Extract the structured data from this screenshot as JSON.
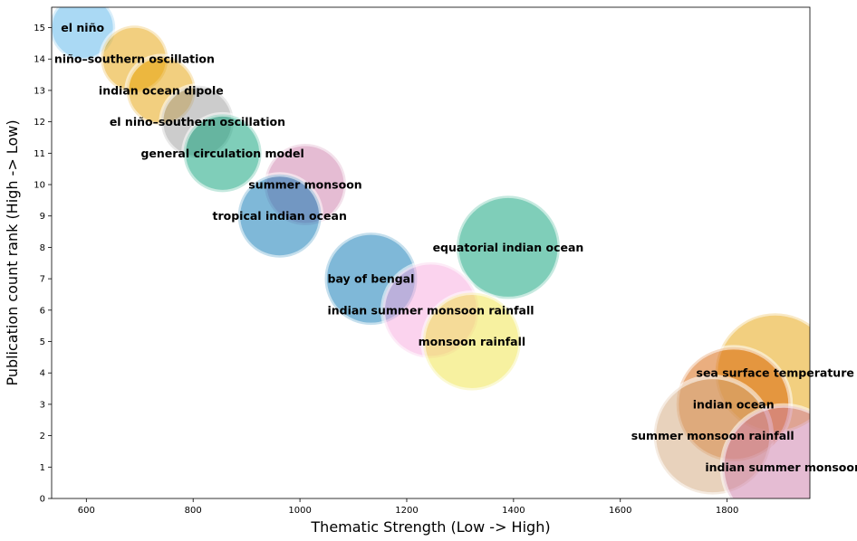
{
  "chart_data": {
    "type": "scatter",
    "xlabel": "Thematic Strength (Low -> High)",
    "ylabel": "Publication count rank (High -> Low)",
    "xlim": [
      535,
      1955
    ],
    "ylim": [
      0,
      15.65
    ],
    "x_ticks": [
      "600",
      "800",
      "1000",
      "1200",
      "1400",
      "1600",
      "1800"
    ],
    "y_ticks": [
      "0",
      "1",
      "2",
      "3",
      "4",
      "5",
      "6",
      "7",
      "8",
      "9",
      "10",
      "11",
      "12",
      "13",
      "14",
      "15"
    ],
    "grid": false,
    "points": [
      {
        "label": "el niño",
        "x": 593,
        "y": 15,
        "size": 36,
        "color": "#56B4E9"
      },
      {
        "label": "niño–southern oscillation",
        "x": 690,
        "y": 14,
        "size": 37,
        "color": "#E69F00"
      },
      {
        "label": "indian ocean dipole",
        "x": 740,
        "y": 13,
        "size": 38,
        "color": "#E69F00"
      },
      {
        "label": "el niño–southern oscillation",
        "x": 808,
        "y": 12,
        "size": 40,
        "color": "#999999"
      },
      {
        "label": "general circulation model",
        "x": 855,
        "y": 11,
        "size": 43,
        "color": "#009E73"
      },
      {
        "label": "summer monsoon",
        "x": 1010,
        "y": 10,
        "size": 45,
        "color": "#CC79A7"
      },
      {
        "label": "tropical indian ocean",
        "x": 962,
        "y": 9,
        "size": 46,
        "color": "#0072B2"
      },
      {
        "label": "equatorial indian ocean",
        "x": 1390,
        "y": 8,
        "size": 57,
        "color": "#009E73"
      },
      {
        "label": "bay of bengal",
        "x": 1133,
        "y": 7,
        "size": 51,
        "color": "#0072B2"
      },
      {
        "label": "indian summer monsoon rainfall",
        "x": 1245,
        "y": 6,
        "size": 53,
        "color": "#F7A8DE"
      },
      {
        "label": "monsoon rainfall",
        "x": 1322,
        "y": 5,
        "size": 54,
        "color": "#F0E442"
      },
      {
        "label": "sea surface temperature",
        "x": 1890,
        "y": 4,
        "size": 66,
        "color": "#E69F00"
      },
      {
        "label": "indian ocean",
        "x": 1812,
        "y": 3,
        "size": 63,
        "color": "#D55E00"
      },
      {
        "label": "summer monsoon rainfall",
        "x": 1773,
        "y": 2,
        "size": 65,
        "color": "#D2A679"
      },
      {
        "label": "indian summer monsoon",
        "x": 1906,
        "y": 1,
        "size": 68,
        "color": "#CC79A7"
      }
    ]
  }
}
